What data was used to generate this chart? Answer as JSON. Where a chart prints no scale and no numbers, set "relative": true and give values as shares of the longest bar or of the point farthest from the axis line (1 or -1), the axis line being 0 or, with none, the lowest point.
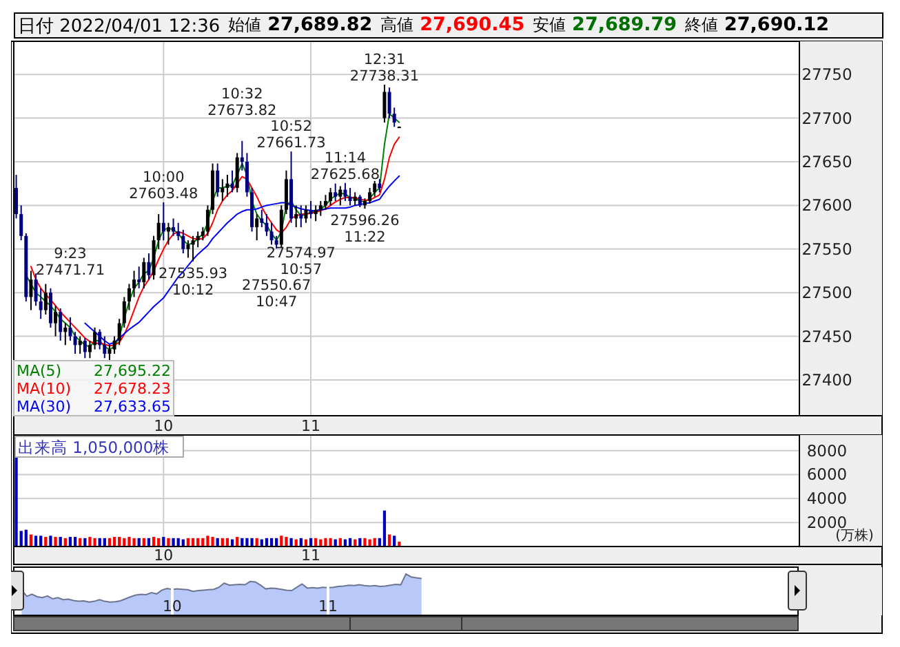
{
  "chart_data": [
    {
      "type": "candlestick",
      "title": "日付 2022/04/01 12:36",
      "categories": [
        null,
        null,
        null,
        null,
        null,
        null,
        null,
        null,
        null,
        null,
        null,
        null,
        null,
        null,
        null,
        null,
        null,
        null,
        null,
        null,
        null,
        null,
        null,
        null,
        null,
        null,
        null,
        null,
        null,
        null,
        "10",
        null,
        null,
        null,
        null,
        null,
        null,
        null,
        null,
        null,
        null,
        null,
        null,
        null,
        null,
        null,
        null,
        null,
        null,
        null,
        null,
        null,
        null,
        null,
        null,
        null,
        null,
        null,
        null,
        null,
        "11",
        null,
        null,
        null,
        null,
        null,
        null,
        null,
        null,
        null,
        null,
        null,
        null,
        null,
        null,
        null,
        null,
        null,
        null,
        null,
        null,
        null,
        null,
        null,
        null,
        null,
        null,
        null,
        null,
        null,
        null,
        null,
        null,
        null,
        null,
        null,
        null,
        null,
        null,
        null,
        null,
        null,
        null,
        null,
        null,
        null,
        null,
        null,
        null,
        null,
        null,
        null,
        null,
        null,
        null,
        null,
        null,
        null,
        null,
        null,
        null,
        null,
        null,
        null,
        null,
        null,
        null,
        null,
        null,
        null,
        null,
        null,
        null,
        null,
        null,
        null,
        null,
        null,
        null,
        null,
        null,
        null,
        null,
        null,
        null,
        null,
        null,
        null,
        null,
        null,
        null,
        null,
        null,
        null,
        null,
        null,
        null,
        null,
        null,
        null
      ],
      "ohlc": [
        [
          27620,
          27635,
          27585,
          27590
        ],
        [
          27590,
          27600,
          27560,
          27565
        ],
        [
          27565,
          27568,
          27490,
          27495
        ],
        [
          27495,
          27525,
          27480,
          27515
        ],
        [
          27515,
          27522,
          27485,
          27490
        ],
        [
          27490,
          27505,
          27470,
          27480
        ],
        [
          27480,
          27510,
          27475,
          27500
        ],
        [
          27500,
          27505,
          27460,
          27465
        ],
        [
          27465,
          27485,
          27450,
          27478
        ],
        [
          27478,
          27482,
          27445,
          27455
        ],
        [
          27455,
          27465,
          27440,
          27460
        ],
        [
          27460,
          27471.71,
          27445,
          27450
        ],
        [
          27450,
          27455,
          27430,
          27440
        ],
        [
          27440,
          27450,
          27430,
          27445
        ],
        [
          27445,
          27448,
          27425,
          27432
        ],
        [
          27432,
          27445,
          27425,
          27440
        ],
        [
          27440,
          27460,
          27435,
          27455
        ],
        [
          27455,
          27458,
          27435,
          27440
        ],
        [
          27440,
          27450,
          27425,
          27430
        ],
        [
          27430,
          27440,
          27421,
          27435
        ],
        [
          27435,
          27450,
          27430,
          27445
        ],
        [
          27445,
          27470,
          27440,
          27465
        ],
        [
          27465,
          27495,
          27460,
          27490
        ],
        [
          27490,
          27510,
          27480,
          27505
        ],
        [
          27505,
          27525,
          27495,
          27515
        ],
        [
          27515,
          27530,
          27505,
          27512
        ],
        [
          27512,
          27540,
          27505,
          27535
        ],
        [
          27535,
          27545,
          27515,
          27520
        ],
        [
          27520,
          27565,
          27515,
          27560
        ],
        [
          27560,
          27590,
          27550,
          27580
        ],
        [
          27580,
          27603.48,
          27560,
          27570
        ],
        [
          27570,
          27580,
          27555,
          27575
        ],
        [
          27575,
          27585,
          27565,
          27570
        ],
        [
          27570,
          27580,
          27560,
          27565
        ],
        [
          27565,
          27572,
          27545,
          27550
        ],
        [
          27550,
          27560,
          27540,
          27555
        ],
        [
          27555,
          27565,
          27535.93,
          27560
        ],
        [
          27560,
          27570,
          27552,
          27565
        ],
        [
          27565,
          27575,
          27560,
          27570
        ],
        [
          27570,
          27600,
          27565,
          27595
        ],
        [
          27595,
          27648,
          27590,
          27640
        ],
        [
          27640,
          27648,
          27610,
          27615
        ],
        [
          27615,
          27630,
          27605,
          27620
        ],
        [
          27620,
          27635,
          27610,
          27625
        ],
        [
          27625,
          27640,
          27615,
          27620
        ],
        [
          27620,
          27660,
          27615,
          27655
        ],
        [
          27655,
          27673.82,
          27640,
          27650
        ],
        [
          27650,
          27660,
          27610,
          27615
        ],
        [
          27615,
          27620,
          27570,
          27575
        ],
        [
          27575,
          27590,
          27560,
          27585
        ],
        [
          27585,
          27595,
          27575,
          27580
        ],
        [
          27580,
          27590,
          27565,
          27570
        ],
        [
          27570,
          27580,
          27555,
          27560
        ],
        [
          27560,
          27565,
          27550.67,
          27555
        ],
        [
          27555,
          27600,
          27552,
          27595
        ],
        [
          27595,
          27640,
          27590,
          27630
        ],
        [
          27630,
          27661.73,
          27580,
          27585
        ],
        [
          27585,
          27600,
          27575,
          27590
        ],
        [
          27590,
          27600,
          27574.97,
          27585
        ],
        [
          27585,
          27600,
          27580,
          27595
        ],
        [
          27595,
          27605,
          27585,
          27590
        ],
        [
          27590,
          27600,
          27582,
          27595
        ],
        [
          27595,
          27605,
          27588,
          27600
        ],
        [
          27600,
          27612,
          27595,
          27605
        ],
        [
          27605,
          27620,
          27600,
          27615
        ],
        [
          27615,
          27625,
          27605,
          27610
        ],
        [
          27610,
          27622,
          27600,
          27618
        ],
        [
          27618,
          27625.68,
          27605,
          27610
        ],
        [
          27610,
          27620,
          27600,
          27605
        ],
        [
          27605,
          27615,
          27600,
          27610
        ],
        [
          27610,
          27612,
          27598,
          27600
        ],
        [
          27600,
          27608,
          27596.26,
          27605
        ],
        [
          27605,
          27620,
          27602,
          27615
        ],
        [
          27615,
          27628,
          27610,
          27625
        ],
        [
          27625,
          27630,
          27615,
          27620
        ],
        [
          27700,
          27738.31,
          27695,
          27730
        ],
        [
          27730,
          27735,
          27700,
          27705
        ],
        [
          27705,
          27712,
          27690,
          27695
        ],
        [
          27689.82,
          27690.45,
          27689.79,
          27690.12
        ],
        null,
        null,
        null,
        null,
        null,
        null,
        null,
        null,
        null,
        null,
        null,
        null,
        null,
        null,
        null,
        null,
        null,
        null,
        null,
        null,
        null,
        null,
        null,
        null,
        null,
        null,
        null,
        null,
        null,
        null,
        null,
        null,
        null,
        null,
        null,
        null,
        null,
        null,
        null,
        null,
        null,
        null,
        null,
        null,
        null,
        null,
        null,
        null,
        null,
        null,
        null,
        null,
        null,
        null,
        null,
        null,
        null,
        null,
        null,
        null,
        null,
        null,
        null,
        null,
        null,
        null,
        null,
        null,
        null,
        null,
        null,
        null,
        null,
        null,
        null,
        null,
        null,
        null,
        null,
        null,
        null
      ],
      "colors": [
        "#000080",
        "#000080",
        "#000080",
        "#000000",
        "#000080",
        "#000080",
        "#000000",
        "#000080",
        "#000000",
        "#000080",
        "#000000",
        "#000080",
        "#000080",
        "#000000",
        "#000080",
        "#000000",
        "#000000",
        "#000080",
        "#000080",
        "#000000",
        "#000000",
        "#000000",
        "#000000",
        "#000000",
        "#000000",
        "#000080",
        "#000000",
        "#000080",
        "#000000",
        "#000000",
        "#000080",
        "#000000",
        "#000080",
        "#000080",
        "#000080",
        "#000000",
        "#000000",
        "#000000",
        "#000000",
        "#000000",
        "#000000",
        "#000080",
        "#000000",
        "#000000",
        "#000080",
        "#000000",
        "#000080",
        "#000080",
        "#000080",
        "#000000",
        "#000080",
        "#000080",
        "#000080",
        "#000080",
        "#000000",
        "#000000",
        "#000080",
        "#000000",
        "#000080",
        "#000000",
        "#000080",
        "#000000",
        "#000000",
        "#000000",
        "#000000",
        "#000080",
        "#000000",
        "#000080",
        "#000080",
        "#000000",
        "#000080",
        "#000000",
        "#000000",
        "#000000",
        "#000080",
        "#000000",
        "#000080",
        "#000080",
        "#000000",
        null,
        null,
        null,
        null,
        null,
        null,
        null,
        null,
        null,
        null,
        null,
        null,
        null,
        null,
        null,
        null,
        null,
        null,
        null,
        null,
        null,
        null,
        null,
        null,
        null,
        null,
        null,
        null,
        null,
        null,
        null,
        null,
        null,
        null,
        null,
        null,
        null,
        null,
        null,
        null,
        null,
        null,
        null,
        null,
        null,
        null,
        null,
        null,
        null,
        null,
        null,
        null,
        null,
        null,
        null,
        null,
        null,
        null,
        null,
        null,
        null,
        null,
        null,
        null,
        null,
        null,
        null,
        null,
        null,
        null,
        null,
        null,
        null,
        null,
        null,
        null,
        null,
        null,
        null,
        null,
        null
      ],
      "series": [
        {
          "name": "MA(5) 27,695.22",
          "type": "line",
          "color": "#008000",
          "values": [
            null,
            null,
            27520,
            27510,
            27500,
            27495,
            27490,
            27485,
            27478,
            27470,
            27465,
            27460,
            27450,
            27445,
            27440,
            27438,
            27445,
            27445,
            27438,
            27435,
            27438,
            27450,
            27470,
            27490,
            27505,
            27512,
            27522,
            27525,
            27540,
            27560,
            27572,
            27574,
            27572,
            27568,
            27560,
            27555,
            27557,
            27562,
            27567,
            27580,
            27605,
            27620,
            27620,
            27622,
            27623,
            27635,
            27648,
            27635,
            27605,
            27590,
            27582,
            27577,
            27568,
            27560,
            27570,
            27600,
            27605,
            27595,
            27588,
            27590,
            27592,
            27593,
            27596,
            27600,
            27607,
            27611,
            27614,
            27613,
            27609,
            27608,
            27605,
            27604,
            27608,
            27615,
            27620,
            27670,
            27705,
            27700,
            27695.22,
            null,
            null,
            null,
            null,
            null,
            null,
            null,
            null,
            null,
            null,
            null,
            null,
            null,
            null,
            null,
            null,
            null,
            null,
            null,
            null,
            null,
            null,
            null,
            null,
            null,
            null,
            null,
            null,
            null,
            null,
            null,
            null,
            null,
            null,
            null,
            null,
            null,
            null,
            null,
            null,
            null,
            null,
            null,
            null,
            null,
            null,
            null,
            null,
            null,
            null,
            null,
            null,
            null,
            null,
            null,
            null,
            null,
            null,
            null,
            null,
            null,
            null,
            null,
            null,
            null,
            null,
            null,
            null,
            null,
            null,
            null,
            null,
            null,
            null,
            null,
            null,
            null,
            null,
            null,
            null,
            null
          ]
        },
        {
          "name": "MA(10) 27,678.23",
          "type": "line",
          "color": "#ff0000",
          "values": [
            null,
            null,
            null,
            27530,
            27515,
            27505,
            27498,
            27492,
            27485,
            27478,
            27472,
            27466,
            27460,
            27454,
            27448,
            27444,
            27442,
            27442,
            27441,
            27439,
            27440,
            27443,
            27452,
            27465,
            27480,
            27495,
            27507,
            27515,
            27525,
            27538,
            27550,
            27560,
            27567,
            27570,
            27568,
            27565,
            27562,
            27561,
            27562,
            27568,
            27580,
            27595,
            27605,
            27612,
            27617,
            27625,
            27633,
            27630,
            27620,
            27610,
            27598,
            27588,
            27580,
            27572,
            27568,
            27575,
            27585,
            27588,
            27590,
            27590,
            27591,
            27592,
            27594,
            27596,
            27600,
            27604,
            27607,
            27609,
            27609,
            27609,
            27607,
            27606,
            27606,
            27609,
            27612,
            27630,
            27655,
            27670,
            27678.23,
            null,
            null,
            null,
            null,
            null,
            null,
            null,
            null,
            null,
            null,
            null,
            null,
            null,
            null,
            null,
            null,
            null,
            null,
            null,
            null,
            null,
            null,
            null,
            null,
            null,
            null,
            null,
            null,
            null,
            null,
            null,
            null,
            null,
            null,
            null,
            null,
            null,
            null,
            null,
            null,
            null,
            null,
            null,
            null,
            null,
            null,
            null,
            null,
            null,
            null,
            null,
            null,
            null,
            null,
            null,
            null,
            null,
            null,
            null,
            null,
            null,
            null,
            null,
            null,
            null,
            null,
            null,
            null,
            null,
            null,
            null,
            null,
            null,
            null,
            null,
            null,
            null,
            null,
            null,
            null,
            null
          ]
        },
        {
          "name": "MA(30) 27,633.65",
          "type": "line",
          "color": "#0000ff",
          "values": [
            null,
            null,
            null,
            null,
            null,
            null,
            null,
            null,
            null,
            null,
            null,
            null,
            null,
            null,
            27465,
            27460,
            27455,
            27450,
            27445,
            27441,
            27443,
            27448,
            27453,
            27458,
            27462,
            27466,
            27472,
            27478,
            27484,
            27489,
            27494,
            27502,
            27510,
            27518,
            27524,
            27531,
            27538,
            27544,
            27549,
            27554,
            27562,
            27568,
            27574,
            27580,
            27585,
            27590,
            27593,
            27595,
            27595,
            27596,
            27598,
            27600,
            27601,
            27602,
            27603,
            27603,
            27600,
            27598,
            27596,
            27595,
            27594,
            27594,
            27595,
            27596,
            27597,
            27597,
            27597,
            27597,
            27598,
            27600,
            27601,
            27602,
            27603,
            27605,
            27607,
            27615,
            27622,
            27628,
            27633.65,
            null,
            null,
            null,
            null,
            null,
            null,
            null,
            null,
            null,
            null,
            null,
            null,
            null,
            null,
            null,
            null,
            null,
            null,
            null,
            null,
            null,
            null,
            null,
            null,
            null,
            null,
            null,
            null,
            null,
            null,
            null,
            null,
            null,
            null,
            null,
            null,
            null,
            null,
            null,
            null,
            null,
            null,
            null,
            null,
            null,
            null,
            null,
            null,
            null,
            null,
            null,
            null,
            null,
            null,
            null,
            null,
            null,
            null,
            null,
            null,
            null,
            null,
            null,
            null,
            null,
            null,
            null,
            null,
            null,
            null,
            null,
            null,
            null,
            null,
            null,
            null,
            null,
            null,
            null,
            null,
            null
          ]
        }
      ],
      "ylim": [
        27359,
        27788
      ],
      "yticks": [
        27400,
        27450,
        27500,
        27550,
        27600,
        27650,
        27700,
        27750
      ],
      "grid": true,
      "annotations": [
        "始値 27,689.82",
        "高値 27,690.45",
        "安値 27,689.79",
        "終値 27,690.12",
        {
          "text": "12:31 27738.31",
          "y": 27738.31
        },
        {
          "text": "10:32 27673.82",
          "y": 27673.82
        },
        {
          "text": "10:52 27661.73",
          "y": 27661.73
        },
        {
          "text": "10:00 27603.48",
          "y": 27603.48
        },
        {
          "text": "11:14 27625.68",
          "y": 27625.68
        },
        {
          "text": "9:23 27471.71",
          "y": 27471.71
        },
        {
          "text": "27535.93 10:12",
          "y": 27535.93
        },
        {
          "text": "27550.67 10:47",
          "y": 27550.67
        },
        {
          "text": "27574.97 10:57",
          "y": 27574.97
        },
        {
          "text": "27596.26 11:22",
          "y": 27596.26
        }
      ]
    },
    {
      "type": "bar",
      "title": "出来高 1,050,000株",
      "ylabel": "(万株)",
      "categories": [
        null,
        null,
        null,
        null,
        null,
        null,
        null,
        null,
        null,
        null,
        null,
        null,
        null,
        null,
        null,
        null,
        null,
        null,
        null,
        null,
        null,
        null,
        null,
        null,
        null,
        null,
        null,
        null,
        null,
        null,
        "10",
        null,
        null,
        null,
        null,
        null,
        null,
        null,
        null,
        null,
        null,
        null,
        null,
        null,
        null,
        null,
        null,
        null,
        null,
        null,
        null,
        null,
        null,
        null,
        null,
        null,
        null,
        null,
        null,
        null,
        "11",
        null,
        null,
        null,
        null,
        null,
        null,
        null,
        null,
        null,
        null,
        null,
        null,
        null,
        null,
        null,
        null,
        null,
        null,
        null,
        null,
        null,
        null,
        null,
        null,
        null,
        null,
        null,
        null,
        null,
        null,
        null,
        null,
        null,
        null,
        null,
        null,
        null,
        null,
        null,
        null,
        null,
        null,
        null,
        null,
        null,
        null,
        null,
        null,
        null,
        null,
        null,
        null,
        null,
        null,
        null,
        null,
        null,
        null,
        null,
        null,
        null,
        null,
        null,
        null,
        null,
        null,
        null,
        null,
        null,
        null,
        null,
        null,
        null,
        null,
        null,
        null,
        null,
        null,
        null,
        null,
        null,
        null,
        null,
        null,
        null,
        null,
        null,
        null,
        null,
        null,
        null,
        null,
        null,
        null,
        null,
        null,
        null,
        null,
        null
      ],
      "values": [
        7800,
        1300,
        1400,
        1000,
        900,
        900,
        800,
        900,
        800,
        800,
        700,
        800,
        800,
        700,
        700,
        800,
        700,
        700,
        700,
        700,
        800,
        800,
        700,
        800,
        700,
        700,
        700,
        700,
        800,
        700,
        800,
        700,
        700,
        700,
        600,
        700,
        700,
        700,
        700,
        900,
        800,
        700,
        700,
        700,
        600,
        800,
        700,
        700,
        700,
        700,
        600,
        700,
        700,
        700,
        900,
        800,
        700,
        600,
        700,
        600,
        700,
        700,
        600,
        700,
        700,
        600,
        700,
        600,
        700,
        600,
        700,
        700,
        600,
        700,
        700,
        3000,
        1000,
        900,
        400,
        null,
        null,
        null,
        null,
        null,
        null,
        null,
        null,
        null,
        null,
        null,
        null,
        null,
        null,
        null,
        null,
        null,
        null,
        null,
        null,
        null,
        null,
        null,
        null,
        null,
        null,
        null,
        null,
        null,
        null,
        null,
        null,
        null,
        null,
        null,
        null,
        null,
        null,
        null,
        null,
        null,
        null,
        null,
        null,
        null,
        null,
        null,
        null,
        null,
        null,
        null,
        null,
        null,
        null,
        null,
        null,
        null,
        null,
        null,
        null,
        null,
        null,
        null,
        null,
        null,
        null,
        null,
        null,
        null,
        null,
        null,
        null,
        null,
        null,
        null,
        null,
        null,
        null,
        null,
        null,
        null
      ],
      "colors": [
        "#0000c0",
        "#0000c0",
        "#0000c0",
        "#ff0000",
        "#0000c0",
        "#0000c0",
        "#ff0000",
        "#0000c0",
        "#ff0000",
        "#0000c0",
        "#ff0000",
        "#0000c0",
        "#0000c0",
        "#ff0000",
        "#0000c0",
        "#ff0000",
        "#ff0000",
        "#0000c0",
        "#0000c0",
        "#ff0000",
        "#ff0000",
        "#ff0000",
        "#ff0000",
        "#ff0000",
        "#ff0000",
        "#0000c0",
        "#ff0000",
        "#0000c0",
        "#ff0000",
        "#ff0000",
        "#0000c0",
        "#ff0000",
        "#0000c0",
        "#0000c0",
        "#0000c0",
        "#ff0000",
        "#ff0000",
        "#ff0000",
        "#ff0000",
        "#ff0000",
        "#ff0000",
        "#0000c0",
        "#ff0000",
        "#ff0000",
        "#0000c0",
        "#ff0000",
        "#0000c0",
        "#0000c0",
        "#0000c0",
        "#ff0000",
        "#0000c0",
        "#0000c0",
        "#0000c0",
        "#0000c0",
        "#ff0000",
        "#ff0000",
        "#0000c0",
        "#ff0000",
        "#0000c0",
        "#ff0000",
        "#0000c0",
        "#ff0000",
        "#ff0000",
        "#ff0000",
        "#ff0000",
        "#0000c0",
        "#ff0000",
        "#0000c0",
        "#0000c0",
        "#ff0000",
        "#0000c0",
        "#ff0000",
        "#ff0000",
        "#ff0000",
        "#0000c0",
        "#0000c0",
        "#ff0000",
        "#0000c0",
        "#ff0000",
        null,
        null,
        null,
        null,
        null,
        null,
        null,
        null,
        null,
        null,
        null,
        null,
        null,
        null,
        null,
        null,
        null,
        null,
        null,
        null,
        null,
        null,
        null,
        null,
        null,
        null,
        null,
        null,
        null,
        null,
        null,
        null,
        null,
        null,
        null,
        null,
        null,
        null,
        null,
        null,
        null,
        null,
        null,
        null,
        null,
        null,
        null,
        null,
        null,
        null,
        null,
        null,
        null,
        null,
        null,
        null,
        null,
        null,
        null,
        null,
        null,
        null,
        null,
        null,
        null,
        null,
        null,
        null,
        null,
        null,
        null,
        null,
        null,
        null,
        null,
        null,
        null,
        null,
        null,
        null,
        null
      ],
      "ylim": [
        0,
        9300
      ],
      "yticks": [
        2000,
        4000,
        6000,
        8000
      ],
      "grid": true
    },
    {
      "type": "area",
      "relative": true,
      "color": "#b8c8f8",
      "categories": [
        null,
        null,
        null,
        null,
        null,
        null,
        null,
        null,
        null,
        null,
        null,
        null,
        null,
        null,
        null,
        null,
        null,
        null,
        null,
        null,
        null,
        null,
        null,
        null,
        null,
        null,
        null,
        null,
        null,
        null,
        "10",
        null,
        null,
        null,
        null,
        null,
        null,
        null,
        null,
        null,
        null,
        null,
        null,
        null,
        null,
        null,
        null,
        null,
        null,
        null,
        null,
        null,
        null,
        null,
        null,
        null,
        null,
        null,
        null,
        null,
        "11",
        null,
        null,
        null,
        null,
        null,
        null,
        null,
        null,
        null,
        null,
        null,
        null,
        null,
        null,
        null,
        null,
        null,
        null,
        null,
        null,
        null,
        null,
        null,
        null,
        null,
        null,
        null,
        null,
        null,
        null,
        null,
        null,
        null,
        null,
        null,
        null,
        null,
        null,
        null,
        null,
        null,
        null,
        null,
        null,
        null,
        null,
        null,
        null,
        null,
        null,
        null,
        null,
        null,
        null,
        null,
        null,
        null,
        null,
        null,
        null,
        null,
        null,
        null,
        null,
        null,
        null,
        null,
        null,
        null,
        null,
        null,
        null,
        null,
        null,
        null,
        null,
        null,
        null,
        null,
        null,
        null,
        null,
        null,
        null,
        null,
        null,
        null,
        null,
        null,
        null,
        null,
        null,
        null,
        null,
        null,
        null,
        null,
        null,
        null
      ],
      "values": [
        null,
        0.62,
        0.46,
        0.51,
        0.45,
        0.43,
        0.47,
        0.4,
        0.43,
        0.38,
        0.39,
        0.36,
        0.34,
        0.35,
        0.32,
        0.34,
        0.38,
        0.34,
        0.32,
        0.33,
        0.35,
        0.4,
        0.45,
        0.49,
        0.51,
        0.5,
        0.55,
        0.52,
        0.61,
        0.65,
        0.63,
        0.64,
        0.63,
        0.62,
        0.58,
        0.6,
        0.61,
        0.62,
        0.63,
        0.68,
        0.78,
        0.73,
        0.74,
        0.75,
        0.74,
        0.82,
        0.81,
        0.73,
        0.64,
        0.66,
        0.65,
        0.63,
        0.61,
        0.6,
        0.68,
        0.76,
        0.66,
        0.67,
        0.66,
        0.68,
        0.67,
        0.68,
        0.7,
        0.71,
        0.73,
        0.72,
        0.74,
        0.72,
        0.71,
        0.72,
        0.7,
        0.71,
        0.73,
        0.75,
        0.74,
        1,
        0.93,
        0.91,
        0.89,
        null,
        null,
        null,
        null,
        null,
        null,
        null,
        null,
        null,
        null,
        null,
        null,
        null,
        null,
        null,
        null,
        null,
        null,
        null,
        null,
        null,
        null,
        null,
        null,
        null,
        null,
        null,
        null,
        null,
        null,
        null,
        null,
        null,
        null,
        null,
        null,
        null,
        null,
        null,
        null,
        null,
        null,
        null,
        null,
        null,
        null,
        null,
        null,
        null,
        null,
        null,
        null,
        null,
        null,
        null,
        null,
        null,
        null,
        null,
        null,
        null,
        null,
        null,
        null,
        null,
        null,
        null,
        null,
        null,
        null,
        null,
        null,
        null,
        null,
        null,
        null,
        null,
        null,
        null,
        null,
        null
      ],
      "grid": "x",
      "tick_labels": "x"
    }
  ]
}
